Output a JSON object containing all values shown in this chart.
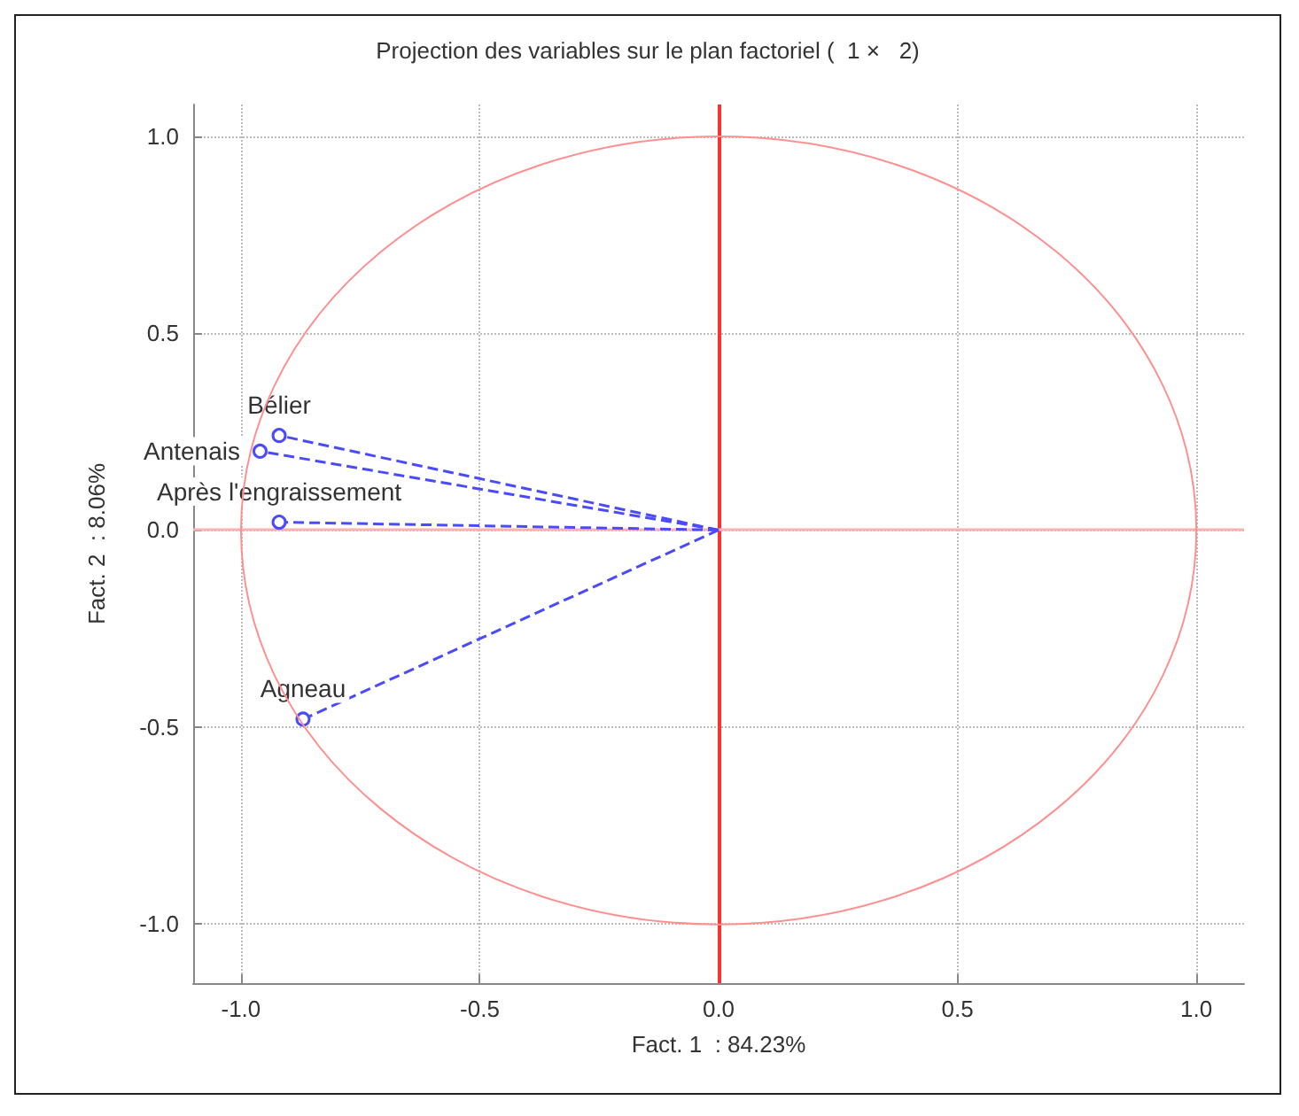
{
  "chart_data": {
    "type": "line",
    "title": "Projection des variables sur le plan factoriel (  1 ×   2)",
    "xlabel": "Fact. 1  : 84.23%",
    "ylabel": "Fact. 2  : 8.06%",
    "series": [
      {
        "name": "Bélier",
        "color": "#4a4aff",
        "x": [
          0,
          -0.92
        ],
        "values": [
          0,
          0.24
        ]
      },
      {
        "name": "Antenais",
        "color": "#4a4aff",
        "x": [
          0,
          -0.96
        ],
        "values": [
          0,
          0.2
        ]
      },
      {
        "name": "Après l'engraissement",
        "color": "#4a4aff",
        "x": [
          0,
          -0.92
        ],
        "values": [
          0,
          0.02
        ]
      },
      {
        "name": "Agneau",
        "color": "#4a4aff",
        "x": [
          0,
          -0.87
        ],
        "values": [
          0,
          -0.48
        ]
      }
    ],
    "xlim": [
      -1.1,
      1.1
    ],
    "ylim": [
      -1.15,
      1.08
    ],
    "xticks": [
      {
        "value": -1,
        "label": "-1.0"
      },
      {
        "value": -0.5,
        "label": "-0.5"
      },
      {
        "value": 0,
        "label": "0.0"
      },
      {
        "value": 0.5,
        "label": "0.5"
      },
      {
        "value": 1,
        "label": "1.0"
      }
    ],
    "yticks": [
      {
        "value": -1,
        "label": "-1.0"
      },
      {
        "value": -0.5,
        "label": "-0.5"
      },
      {
        "value": 0,
        "label": "0.0"
      },
      {
        "value": 0.5,
        "label": "0.5"
      },
      {
        "value": 1,
        "label": "1.0"
      }
    ],
    "ref_lines": [
      {
        "axis": "x",
        "value": 0,
        "color": "#ff3030",
        "line_style": "solid"
      },
      {
        "axis": "y",
        "value": 0,
        "color": "#ffb0b0",
        "line_style": "solid"
      }
    ],
    "grid": true,
    "legend": false,
    "marker": "circle",
    "line_style": "dashed"
  }
}
